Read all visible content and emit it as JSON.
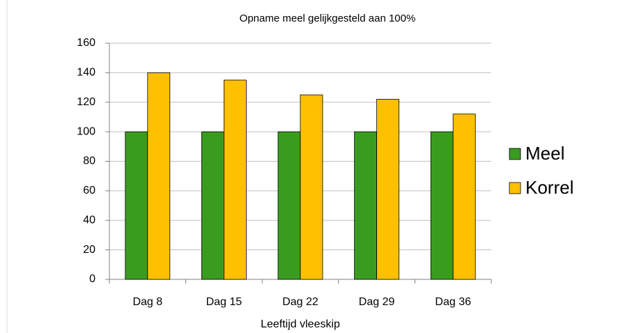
{
  "chart_data": {
    "type": "bar",
    "title": "Opname meel gelijkgesteld aan 100%",
    "xlabel": "Leeftijd vleeskip",
    "categories": [
      "Dag 8",
      "Dag 15",
      "Dag 22",
      "Dag 29",
      "Dag 36"
    ],
    "series": [
      {
        "name": "Meel",
        "color": "#3a9c1e",
        "values": [
          100,
          100,
          100,
          100,
          100
        ]
      },
      {
        "name": "Korrel",
        "color": "#ffc000",
        "values": [
          140,
          135,
          125,
          122,
          112
        ]
      }
    ],
    "ylim": [
      0,
      160
    ],
    "yticks": [
      0,
      20,
      40,
      60,
      80,
      100,
      120,
      140,
      160
    ],
    "grid": true,
    "legend": "right"
  }
}
